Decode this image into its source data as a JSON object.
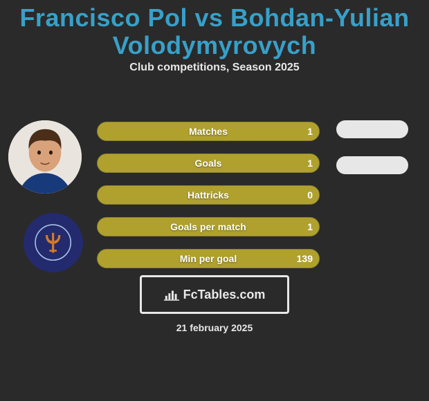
{
  "background_color": "#2a2a2a",
  "title": {
    "text": "Francisco Pol vs Bohdan-Yulian Volodymyrovych",
    "color": "#38a0c8",
    "fontsize": 36
  },
  "subtitle": {
    "text": "Club competitions, Season 2025",
    "color": "#e8e8e8",
    "fontsize": 16
  },
  "bar_style": {
    "track_width": 322,
    "bar_color": "#b0a12f",
    "bar_border_color": "#8a7f29",
    "label_color": "#ffffff",
    "value_color": "#ffffff",
    "label_fontsize": 14,
    "value_fontsize": 14
  },
  "stats": [
    {
      "label": "Matches",
      "value": "1",
      "fill_pct": 100
    },
    {
      "label": "Goals",
      "value": "1",
      "fill_pct": 100
    },
    {
      "label": "Hattricks",
      "value": "0",
      "fill_pct": 100
    },
    {
      "label": "Goals per match",
      "value": "1",
      "fill_pct": 100
    },
    {
      "label": "Min per goal",
      "value": "139",
      "fill_pct": 100
    }
  ],
  "pills": {
    "color": "#e7e7e7",
    "count": 2
  },
  "avatar1": {
    "bg": "#e9e5de",
    "skin": "#d9a27a",
    "hair": "#4a2e1a",
    "shirt": "#173a7a"
  },
  "avatar2": {
    "bg": "#232a6d",
    "trident": "#d47a2a",
    "ring": "#a9c2e8"
  },
  "footer_badge": {
    "border_color": "#e8e8e8",
    "text_color": "#e8e8e8",
    "text": "FcTables.com",
    "fontsize": 18
  },
  "date": {
    "text": "21 february 2025",
    "color": "#e8e8e8",
    "fontsize": 14
  }
}
